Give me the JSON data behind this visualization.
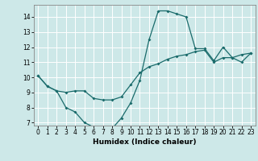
{
  "title": "",
  "xlabel": "Humidex (Indice chaleur)",
  "ylabel": "",
  "background_color": "#cde8e8",
  "line_color": "#1a6b6b",
  "grid_color": "#ffffff",
  "xlim": [
    -0.5,
    23.5
  ],
  "ylim": [
    6.8,
    14.8
  ],
  "xticks": [
    0,
    1,
    2,
    3,
    4,
    5,
    6,
    7,
    8,
    9,
    10,
    11,
    12,
    13,
    14,
    15,
    16,
    17,
    18,
    19,
    20,
    21,
    22,
    23
  ],
  "yticks": [
    7,
    8,
    9,
    10,
    11,
    12,
    13,
    14
  ],
  "line1_x": [
    0,
    1,
    2,
    3,
    4,
    5,
    6,
    7,
    8,
    9,
    10,
    11,
    12,
    13,
    14,
    15,
    16,
    17,
    18,
    19,
    20,
    21,
    22,
    23
  ],
  "line1_y": [
    10.1,
    9.4,
    9.1,
    8.0,
    7.7,
    7.0,
    6.7,
    6.6,
    6.6,
    7.3,
    8.3,
    9.8,
    12.5,
    14.4,
    14.4,
    14.2,
    14.0,
    11.9,
    11.9,
    11.1,
    12.0,
    11.3,
    11.0,
    11.6
  ],
  "line2_x": [
    0,
    1,
    2,
    3,
    4,
    5,
    6,
    7,
    8,
    9,
    10,
    11,
    12,
    13,
    14,
    15,
    16,
    17,
    18,
    19,
    20,
    21,
    22,
    23
  ],
  "line2_y": [
    10.1,
    9.4,
    9.1,
    9.0,
    9.1,
    9.1,
    8.6,
    8.5,
    8.5,
    8.7,
    9.5,
    10.3,
    10.7,
    10.9,
    11.2,
    11.4,
    11.5,
    11.7,
    11.8,
    11.0,
    11.3,
    11.3,
    11.5,
    11.6
  ],
  "tick_fontsize": 5.5,
  "xlabel_fontsize": 6.5
}
